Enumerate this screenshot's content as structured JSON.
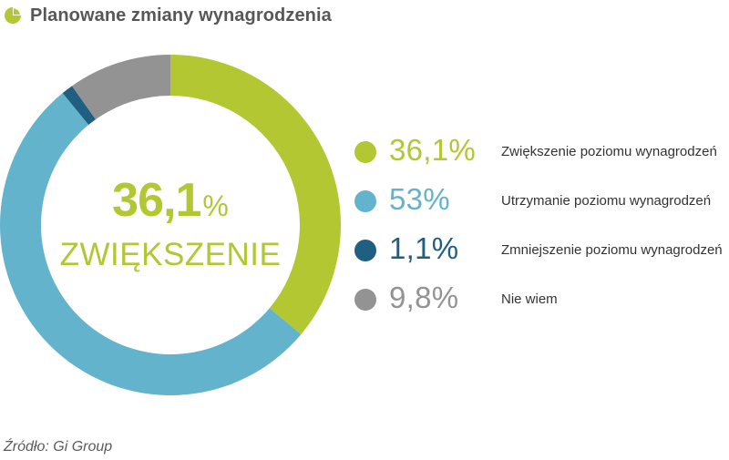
{
  "title": "Planowane zmiany wynagrodzenia",
  "center": {
    "number": "36,1",
    "percent": "%",
    "label": "ZWIĘKSZENIE"
  },
  "source": "Źródło: Gi Group",
  "colors": {
    "title": "#575757",
    "increase": "#b2c732",
    "maintain": "#64b3cd",
    "decrease": "#1f5f82",
    "dont_know": "#939393"
  },
  "legend": [
    {
      "value": "36,1%",
      "label": "Zwiększenie poziomu wynagrodzeń",
      "color": "#b2c732"
    },
    {
      "value": "53%",
      "label": "Utrzymanie poziomu wynagrodzeń",
      "color": "#64b3cd"
    },
    {
      "value": "1,1%",
      "label": "Zmniejszenie poziomu wynagrodzeń",
      "color": "#1f5f82"
    },
    {
      "value": "9,8%",
      "label": "Nie wiem",
      "color": "#939393"
    }
  ],
  "chart_data": {
    "type": "pie",
    "variant": "donut",
    "title": "Planowane zmiany wynagrodzenia",
    "categories": [
      "Zwiększenie poziomu wynagrodzeń",
      "Utrzymanie poziomu wynagrodzeń",
      "Zmniejszenie poziomu wynagrodzeń",
      "Nie wiem"
    ],
    "values": [
      36.1,
      53,
      1.1,
      9.8
    ],
    "unit": "%",
    "colors": [
      "#b2c732",
      "#64b3cd",
      "#1f5f82",
      "#939393"
    ],
    "legend_position": "right",
    "center_label": "36,1% ZWIĘKSZENIE"
  }
}
